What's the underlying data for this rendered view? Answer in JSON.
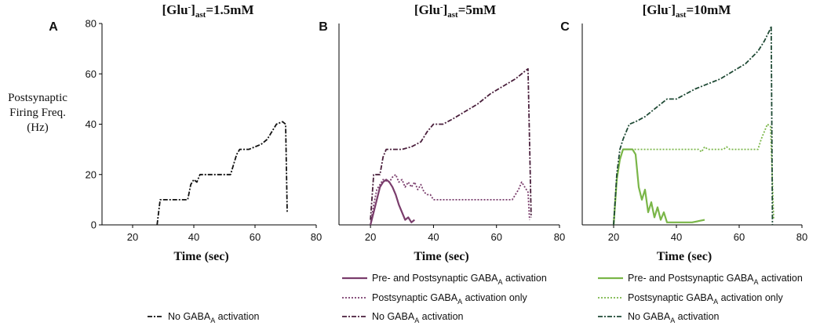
{
  "y_axis_label_lines": [
    "Postsynaptic",
    "Firing Freq.",
    "(Hz)"
  ],
  "colors": {
    "black": "#111111",
    "purple_dark": "#4a1f3c",
    "purple": "#7a3d6c",
    "green_dark": "#1f4a35",
    "green": "#7ab648"
  },
  "chart_data": [
    {
      "type": "line",
      "panel": "A",
      "title": "[Glu-]ast=1.5mM",
      "title_parts": {
        "base": "[Glu",
        "sup": "-",
        "close": "]",
        "sub": "ast",
        "value": "=1.5mM"
      },
      "xlabel": "Time (sec)",
      "ylabel": "Postsynaptic Firing Freq. (Hz)",
      "xlim": [
        10,
        80
      ],
      "ylim": [
        0,
        80
      ],
      "xticks": [
        20,
        40,
        60,
        80
      ],
      "yticks": [
        0,
        20,
        40,
        60,
        80
      ],
      "show_y_axis_ticks": true,
      "series": [
        {
          "name": "No GABAA activation",
          "legend_base": "No GABA",
          "legend_sub": "A",
          "legend_rest": " activation",
          "style": "dashdot",
          "color": "#111111",
          "points": [
            [
              28,
              0
            ],
            [
              29,
              10
            ],
            [
              38,
              10
            ],
            [
              39,
              16
            ],
            [
              40,
              18
            ],
            [
              41,
              17
            ],
            [
              42,
              20
            ],
            [
              45,
              20
            ],
            [
              52,
              20
            ],
            [
              53,
              24
            ],
            [
              54,
              28
            ],
            [
              55,
              30
            ],
            [
              58,
              30
            ],
            [
              62,
              32
            ],
            [
              64,
              34
            ],
            [
              65,
              36
            ],
            [
              66,
              38
            ],
            [
              67,
              40
            ],
            [
              69,
              41
            ],
            [
              70,
              40
            ],
            [
              70.5,
              5
            ]
          ]
        }
      ]
    },
    {
      "type": "line",
      "panel": "B",
      "title": "[Glu-]ast=5mM",
      "title_parts": {
        "base": "[Glu",
        "sup": "-",
        "close": "]",
        "sub": "ast",
        "value": "=5mM"
      },
      "xlabel": "Time (sec)",
      "xlim": [
        10,
        80
      ],
      "ylim": [
        0,
        80
      ],
      "xticks": [
        20,
        40,
        60,
        80
      ],
      "show_y_axis_ticks": false,
      "series": [
        {
          "name": "Pre- and Postsynaptic GABAA activation",
          "legend_base": "Pre- and Postsynaptic GABA",
          "legend_sub": "A",
          "legend_rest": " activation",
          "style": "solid",
          "color": "#7a3d6c",
          "points": [
            [
              20,
              0
            ],
            [
              21,
              5
            ],
            [
              22,
              10
            ],
            [
              23,
              15
            ],
            [
              24,
              17
            ],
            [
              25,
              18
            ],
            [
              26,
              17
            ],
            [
              27,
              15
            ],
            [
              28,
              12
            ],
            [
              29,
              8
            ],
            [
              30,
              5
            ],
            [
              31,
              2
            ],
            [
              32,
              3
            ],
            [
              33,
              1
            ],
            [
              34,
              2
            ]
          ]
        },
        {
          "name": "Postsynaptic GABAA activation only",
          "legend_base": "Postsynaptic GABA",
          "legend_sub": "A",
          "legend_rest": " activation only",
          "style": "dotted",
          "color": "#7a3d6c",
          "points": [
            [
              20,
              0
            ],
            [
              21,
              8
            ],
            [
              22,
              14
            ],
            [
              24,
              18
            ],
            [
              26,
              17
            ],
            [
              27,
              19
            ],
            [
              28,
              20
            ],
            [
              29,
              17
            ],
            [
              30,
              18
            ],
            [
              31,
              15
            ],
            [
              32,
              17
            ],
            [
              33,
              15
            ],
            [
              34,
              17
            ],
            [
              35,
              14
            ],
            [
              36,
              16
            ],
            [
              37,
              13
            ],
            [
              38,
              12
            ],
            [
              39,
              12
            ],
            [
              40,
              10
            ],
            [
              50,
              10
            ],
            [
              60,
              10
            ],
            [
              65,
              10
            ],
            [
              66,
              12
            ],
            [
              67,
              14
            ],
            [
              68,
              17
            ],
            [
              69,
              15
            ],
            [
              70,
              13
            ],
            [
              70.5,
              2
            ]
          ]
        },
        {
          "name": "No GABAA activation",
          "legend_base": "No GABA",
          "legend_sub": "A",
          "legend_rest": " activation",
          "style": "dashdot",
          "color": "#4a1f3c",
          "points": [
            [
              20,
              2
            ],
            [
              21,
              20
            ],
            [
              23,
              20
            ],
            [
              24,
              27
            ],
            [
              25,
              30
            ],
            [
              30,
              30
            ],
            [
              33,
              31
            ],
            [
              36,
              33
            ],
            [
              38,
              37
            ],
            [
              40,
              40
            ],
            [
              43,
              40
            ],
            [
              46,
              42
            ],
            [
              50,
              45
            ],
            [
              54,
              48
            ],
            [
              58,
              52
            ],
            [
              62,
              55
            ],
            [
              66,
              58
            ],
            [
              69,
              61
            ],
            [
              70,
              62
            ],
            [
              71,
              3
            ]
          ]
        }
      ]
    },
    {
      "type": "line",
      "panel": "C",
      "title": "[Glu-]ast=10mM",
      "title_parts": {
        "base": "[Glu",
        "sup": "-",
        "close": "]",
        "sub": "ast",
        "value": "=10mM"
      },
      "xlabel": "Time (sec)",
      "xlim": [
        10,
        80
      ],
      "ylim": [
        0,
        80
      ],
      "xticks": [
        20,
        40,
        60,
        80
      ],
      "show_y_axis_ticks": false,
      "series": [
        {
          "name": "Pre- and Postsynaptic GABAA activation",
          "legend_base": "Pre- and Postsynaptic GABA",
          "legend_sub": "A",
          "legend_rest": " activation",
          "style": "solid",
          "color": "#7ab648",
          "points": [
            [
              20,
              0
            ],
            [
              21,
              18
            ],
            [
              22,
              26
            ],
            [
              23,
              30
            ],
            [
              26,
              30
            ],
            [
              27,
              28
            ],
            [
              28,
              15
            ],
            [
              29,
              10
            ],
            [
              30,
              14
            ],
            [
              31,
              5
            ],
            [
              32,
              9
            ],
            [
              33,
              3
            ],
            [
              34,
              7
            ],
            [
              35,
              2
            ],
            [
              36,
              5
            ],
            [
              37,
              1
            ],
            [
              40,
              1
            ],
            [
              45,
              1
            ],
            [
              49,
              2
            ]
          ]
        },
        {
          "name": "Postsynaptic GABAA activation only",
          "legend_base": "Postsynaptic GABA",
          "legend_sub": "A",
          "legend_rest": " activation only",
          "style": "dotted",
          "color": "#7ab648",
          "points": [
            [
              20,
              0
            ],
            [
              21,
              18
            ],
            [
              22,
              26
            ],
            [
              23,
              30
            ],
            [
              30,
              30
            ],
            [
              40,
              30
            ],
            [
              47,
              30
            ],
            [
              48,
              29
            ],
            [
              49,
              31
            ],
            [
              50,
              30
            ],
            [
              55,
              30
            ],
            [
              56,
              31
            ],
            [
              57,
              30
            ],
            [
              66,
              30
            ],
            [
              67,
              34
            ],
            [
              68,
              37
            ],
            [
              69,
              40
            ],
            [
              70,
              39
            ],
            [
              71,
              2
            ]
          ]
        },
        {
          "name": "No GABAA activation",
          "legend_base": "No GABA",
          "legend_sub": "A",
          "legend_rest": " activation",
          "style": "dashdot",
          "color": "#1f4a35",
          "points": [
            [
              20,
              0
            ],
            [
              21,
              20
            ],
            [
              22,
              30
            ],
            [
              23,
              34
            ],
            [
              24,
              37
            ],
            [
              25,
              40
            ],
            [
              27,
              41
            ],
            [
              30,
              43
            ],
            [
              33,
              46
            ],
            [
              35,
              48
            ],
            [
              37,
              50
            ],
            [
              40,
              50
            ],
            [
              43,
              52
            ],
            [
              46,
              54
            ],
            [
              50,
              56
            ],
            [
              54,
              58
            ],
            [
              58,
              61
            ],
            [
              62,
              64
            ],
            [
              66,
              69
            ],
            [
              68,
              73
            ],
            [
              70,
              78
            ],
            [
              70.2,
              79
            ],
            [
              70.6,
              0
            ]
          ]
        }
      ]
    }
  ]
}
